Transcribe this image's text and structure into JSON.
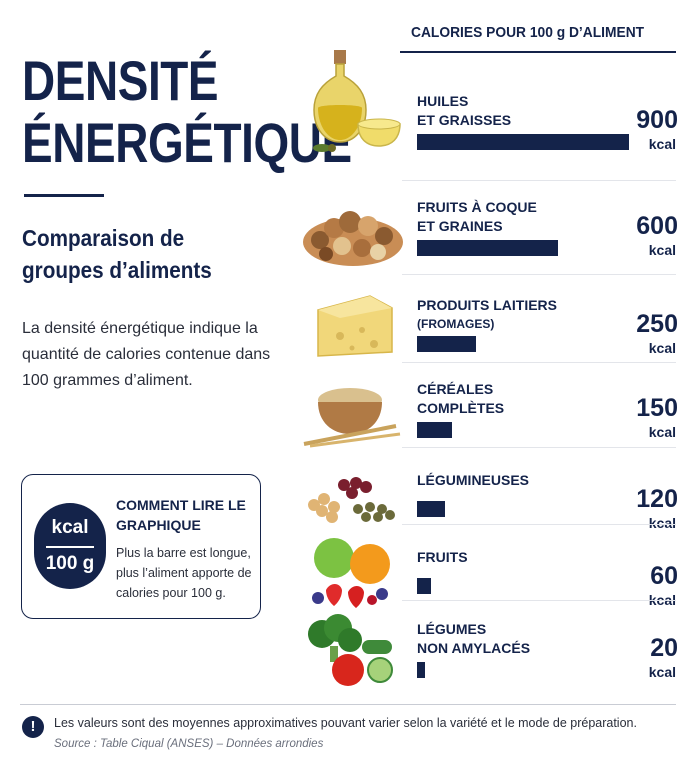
{
  "title": [
    "DENSITÉ",
    "ÉNERGÉTIQUE"
  ],
  "subtitle": "Comparaison de groupes d’aliments",
  "description": "La densité énergétique indique la quantité de calories contenue dans 100 grammes d’aliment.",
  "howto": {
    "badge_top": "kcal",
    "badge_bottom": "100 g",
    "title": "COMMENT LIRE LE GRAPHIQUE",
    "text": "Plus la barre est longue, plus l’aliment apporte de calories pour 100 g."
  },
  "footer": {
    "note": "Les valeurs sont des moyennes approximatives pouvant varier selon la variété et le mode de préparation.",
    "source": "Source : Table Ciqual (ANSES) – Données arrondies",
    "info_icon": "!"
  },
  "colors": {
    "navy": "#14234a"
  },
  "chart_data": {
    "type": "bar",
    "orientation": "horizontal",
    "title": "CALORIES POUR 100 g D’ALIMENT",
    "unit": "kcal",
    "xlim": [
      0,
      900
    ],
    "categories": [
      {
        "label": "HUILES\nET GRAISSES",
        "sub": "",
        "icon": "olive-oil-icon"
      },
      {
        "label": "FRUITS À COQUE\nET GRAINES",
        "sub": "",
        "icon": "nuts-icon"
      },
      {
        "label": "PRODUITS LAITIERS",
        "sub": "(FROMAGES)",
        "icon": "cheese-icon"
      },
      {
        "label": "CÉRÉALES\nCOMPLÈTES",
        "sub": "",
        "icon": "grain-bowl-icon"
      },
      {
        "label": "LÉGUMINEUSES",
        "sub": "",
        "icon": "legumes-icon"
      },
      {
        "label": "FRUITS",
        "sub": "",
        "icon": "fruits-icon"
      },
      {
        "label": "LÉGUMES\nNON AMYLACÉS",
        "sub": "",
        "icon": "vegetables-icon"
      }
    ],
    "values": [
      900,
      600,
      250,
      150,
      120,
      60,
      20
    ]
  }
}
